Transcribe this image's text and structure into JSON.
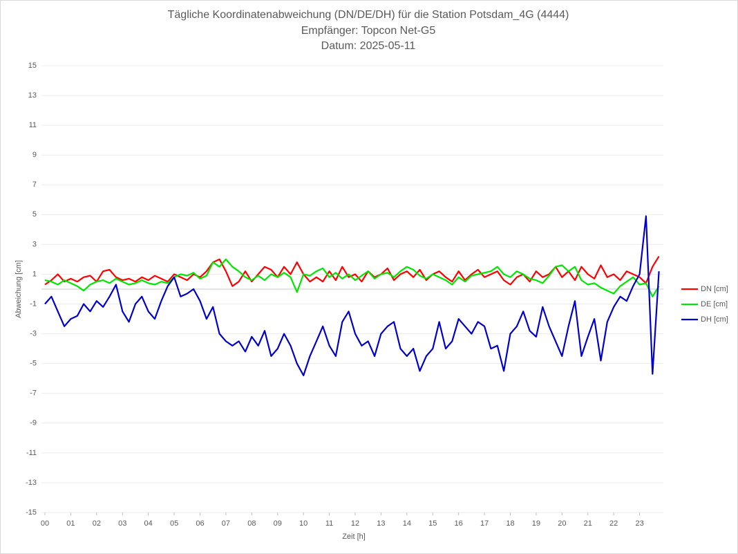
{
  "chart_data": {
    "type": "line",
    "title": "Tägliche Koordinatenabweichung (DN/DE/DH) für die Station Potsdam_4G (4444)",
    "subtitle": "Empfänger: Topcon Net-G5",
    "date_label": "Datum: 2025-05-11",
    "x_label": "Zeit [h]",
    "y_label": "Abweichung [cm]",
    "x": [
      0,
      0.25,
      0.5,
      0.75,
      1,
      1.25,
      1.5,
      1.75,
      2,
      2.25,
      2.5,
      2.75,
      3,
      3.25,
      3.5,
      3.75,
      4,
      4.25,
      4.5,
      4.75,
      5,
      5.25,
      5.5,
      5.75,
      6,
      6.25,
      6.5,
      6.75,
      7,
      7.25,
      7.5,
      7.75,
      8,
      8.25,
      8.5,
      8.75,
      9,
      9.25,
      9.5,
      9.75,
      10,
      10.25,
      10.5,
      10.75,
      11,
      11.25,
      11.5,
      11.75,
      12,
      12.25,
      12.5,
      12.75,
      13,
      13.25,
      13.5,
      13.75,
      14,
      14.25,
      14.5,
      14.75,
      15,
      15.25,
      15.5,
      15.75,
      16,
      16.25,
      16.5,
      16.75,
      17,
      17.25,
      17.5,
      17.75,
      18,
      18.25,
      18.5,
      18.75,
      19,
      19.25,
      19.5,
      19.75,
      20,
      20.25,
      20.5,
      20.75,
      21,
      21.25,
      21.5,
      21.75,
      22,
      22.25,
      22.5,
      22.75,
      23,
      23.25,
      23.5,
      23.75
    ],
    "series": [
      {
        "name": "DN [cm]",
        "color": "#ff0000",
        "values": [
          0.3,
          0.6,
          1,
          0.5,
          0.7,
          0.5,
          0.8,
          0.9,
          0.5,
          1.2,
          1.3,
          0.8,
          0.6,
          0.7,
          0.5,
          0.8,
          0.6,
          0.9,
          0.7,
          0.5,
          1,
          0.8,
          0.6,
          1,
          0.8,
          1.2,
          1.8,
          2,
          1.2,
          0.2,
          0.5,
          1.2,
          0.5,
          1,
          1.5,
          1.3,
          0.8,
          1.5,
          1,
          1.8,
          1,
          0.5,
          0.8,
          0.5,
          1.2,
          0.6,
          1.5,
          0.8,
          1,
          0.5,
          1.2,
          0.8,
          1,
          1.4,
          0.6,
          1,
          1.2,
          0.8,
          1.3,
          0.6,
          1,
          1.2,
          0.8,
          0.5,
          1.2,
          0.6,
          1,
          1.3,
          0.8,
          1,
          1.2,
          0.6,
          0.3,
          0.8,
          1,
          0.5,
          1.2,
          0.8,
          1,
          1.5,
          0.8,
          1.2,
          0.6,
          1.5,
          1,
          0.7,
          1.6,
          0.8,
          1,
          0.6,
          1.2,
          1,
          0.8,
          0.4,
          1.5,
          2.2
        ]
      },
      {
        "name": "DE [cm]",
        "color": "#00e600",
        "values": [
          0.6,
          0.5,
          0.3,
          0.6,
          0.4,
          0.2,
          -0.1,
          0.3,
          0.5,
          0.6,
          0.4,
          0.7,
          0.5,
          0.3,
          0.4,
          0.6,
          0.4,
          0.3,
          0.5,
          0.4,
          0.8,
          1,
          0.9,
          1.1,
          0.7,
          0.9,
          1.8,
          1.5,
          2,
          1.5,
          1.2,
          0.8,
          0.6,
          0.9,
          0.6,
          1,
          0.8,
          1.1,
          0.8,
          -0.2,
          1,
          0.9,
          1.2,
          1.4,
          0.8,
          1.1,
          0.7,
          1,
          0.6,
          0.9,
          1.2,
          0.7,
          1,
          1.1,
          0.8,
          1.2,
          1.5,
          1.3,
          0.9,
          0.7,
          1,
          0.8,
          0.6,
          0.3,
          0.8,
          0.5,
          0.9,
          1,
          1.1,
          1.2,
          1.5,
          1,
          0.8,
          1.2,
          1,
          0.7,
          0.6,
          0.4,
          0.9,
          1.5,
          1.6,
          1.2,
          1.5,
          0.6,
          0.3,
          0.4,
          0.1,
          -0.1,
          -0.3,
          0.2,
          0.5,
          0.8,
          0.3,
          0.4,
          -0.5,
          0.2
        ]
      },
      {
        "name": "DH [cm]",
        "color": "#0000cc",
        "values": [
          -1,
          -0.5,
          -1.5,
          -2.5,
          -2,
          -1.8,
          -1,
          -1.5,
          -0.8,
          -1.2,
          -0.5,
          0.3,
          -1.5,
          -2.2,
          -1,
          -0.5,
          -1.5,
          -2,
          -0.8,
          0.2,
          0.8,
          -0.5,
          -0.3,
          0,
          -0.8,
          -2,
          -1.2,
          -3,
          -3.5,
          -3.8,
          -3.5,
          -4.2,
          -3.2,
          -3.8,
          -2.8,
          -4.5,
          -4,
          -3,
          -3.8,
          -5,
          -5.8,
          -4.5,
          -3.5,
          -2.5,
          -3.8,
          -4.5,
          -2.2,
          -1.5,
          -3,
          -3.8,
          -3.5,
          -4.5,
          -3,
          -2.5,
          -2.2,
          -4,
          -4.5,
          -4,
          -5.5,
          -4.5,
          -4,
          -2.2,
          -4,
          -3.5,
          -2,
          -2.5,
          -3,
          -2.2,
          -2.5,
          -4,
          -3.8,
          -5.5,
          -3,
          -2.5,
          -1.5,
          -2.8,
          -3.2,
          -1.2,
          -2.5,
          -3.5,
          -4.5,
          -2.5,
          -0.8,
          -4.5,
          -3.2,
          -2,
          -4.8,
          -2.2,
          -1.2,
          -0.5,
          -0.8,
          0.2,
          1,
          4.9,
          -5.7,
          1.2
        ]
      }
    ],
    "xlim": [
      0,
      24
    ],
    "xticks": [
      {
        "value": 0,
        "label": "00"
      },
      {
        "value": 1,
        "label": "01"
      },
      {
        "value": 2,
        "label": "02"
      },
      {
        "value": 3,
        "label": "03"
      },
      {
        "value": 4,
        "label": "04"
      },
      {
        "value": 5,
        "label": "05"
      },
      {
        "value": 6,
        "label": "06"
      },
      {
        "value": 7,
        "label": "07"
      },
      {
        "value": 8,
        "label": "08"
      },
      {
        "value": 9,
        "label": "09"
      },
      10,
      11,
      12,
      13,
      14,
      15,
      16,
      17,
      18,
      19,
      20,
      21,
      22,
      23
    ],
    "ylim": [
      -15,
      15
    ],
    "yticks": [
      -15,
      -13,
      -11,
      -9,
      -7,
      -5,
      -3,
      -1,
      1,
      3,
      5,
      7,
      9,
      11,
      13,
      15
    ],
    "grid": true,
    "legend": "right"
  }
}
